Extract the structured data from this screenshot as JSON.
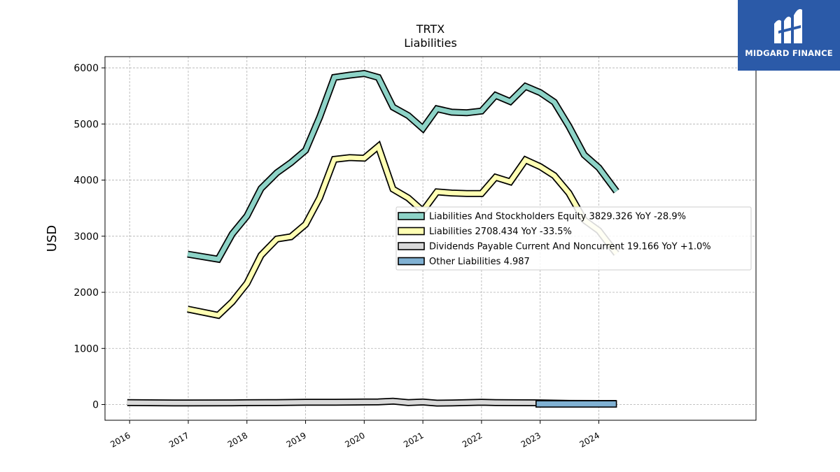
{
  "chart_data": {
    "type": "area",
    "title": "TRTX",
    "subtitle": "Liabilities",
    "xlabel": "",
    "ylabel": "USD",
    "ylim": [
      -280,
      6200
    ],
    "xlim": [
      2015.58,
      2026.68
    ],
    "yticks": [
      0,
      1000,
      2000,
      3000,
      4000,
      5000,
      6000
    ],
    "xticks": [
      {
        "pos": 2016.0,
        "label": "2016"
      },
      {
        "pos": 2017.0,
        "label": "2017"
      },
      {
        "pos": 2018.0,
        "label": "2018"
      },
      {
        "pos": 2019.0,
        "label": "2019"
      },
      {
        "pos": 2020.0,
        "label": "2020"
      },
      {
        "pos": 2021.0,
        "label": "2021"
      },
      {
        "pos": 2022.0,
        "label": "2022"
      },
      {
        "pos": 2023.0,
        "label": "2023"
      },
      {
        "pos": 2024.0,
        "label": "2024"
      }
    ],
    "grid": true,
    "legend_placement": "center-right",
    "series": [
      {
        "name": "Liabilities And Stockholders Equity",
        "legend": "Liabilities And Stockholders Equity  3829.326 YoY -28.9%",
        "color": "#8dd3c7",
        "x": [
          2016.99,
          2017.51,
          2017.75,
          2018.0,
          2018.24,
          2018.51,
          2018.75,
          2019.0,
          2019.24,
          2019.49,
          2019.75,
          2020.0,
          2020.24,
          2020.49,
          2020.75,
          2021.0,
          2021.24,
          2021.49,
          2021.75,
          2022.0,
          2022.24,
          2022.49,
          2022.75,
          2023.0,
          2023.24,
          2023.49,
          2023.75,
          2024.0,
          2024.3
        ],
        "values": [
          2680,
          2590,
          3040,
          3360,
          3850,
          4130,
          4310,
          4530,
          5120,
          5830,
          5870,
          5900,
          5830,
          5300,
          5150,
          4920,
          5270,
          5210,
          5200,
          5230,
          5510,
          5400,
          5670,
          5560,
          5390,
          4960,
          4450,
          4220,
          3800
        ]
      },
      {
        "name": "Liabilities",
        "legend": "Liabilities  2708.434 YoY -33.5%",
        "color": "#ffffb3",
        "x": [
          2016.99,
          2017.51,
          2017.75,
          2018.0,
          2018.24,
          2018.51,
          2018.75,
          2019.0,
          2019.24,
          2019.49,
          2019.75,
          2020.0,
          2020.24,
          2020.49,
          2020.75,
          2021.0,
          2021.24,
          2021.49,
          2021.75,
          2022.0,
          2022.24,
          2022.49,
          2022.75,
          2023.0,
          2023.24,
          2023.49,
          2023.75,
          2024.0,
          2024.3
        ],
        "values": [
          1700,
          1590,
          1830,
          2160,
          2660,
          2950,
          2990,
          3210,
          3680,
          4370,
          4400,
          4390,
          4600,
          3840,
          3680,
          3450,
          3790,
          3770,
          3760,
          3760,
          4050,
          3970,
          4360,
          4240,
          4080,
          3770,
          3290,
          3100,
          2690
        ]
      },
      {
        "name": "Dividends Payable Current And Noncurrent",
        "legend": "Dividends Payable Current And Noncurrent  19.166 YoY +1.0%",
        "color": "#d9d9d9",
        "x": [
          2015.96,
          2016.75,
          2017.0,
          2017.75,
          2018.0,
          2018.5,
          2019.0,
          2019.5,
          2020.0,
          2020.24,
          2020.49,
          2020.75,
          2021.0,
          2021.24,
          2021.5,
          2022.0,
          2022.24,
          2022.5,
          2023.0,
          2023.24,
          2023.5,
          2024.0,
          2024.3
        ],
        "values": [
          35,
          28,
          28,
          30,
          33,
          35,
          40,
          42,
          45,
          47,
          60,
          35,
          45,
          25,
          28,
          40,
          35,
          33,
          30,
          25,
          20,
          19,
          19
        ]
      },
      {
        "name": "Other Liabilities",
        "legend": "Other Liabilities  4.987",
        "color": "#80b1d3",
        "x": [
          2022.93,
          2024.3
        ],
        "values": [
          5,
          5
        ]
      }
    ]
  },
  "branding": {
    "logo_text": "MIDGARD FINANCE"
  }
}
